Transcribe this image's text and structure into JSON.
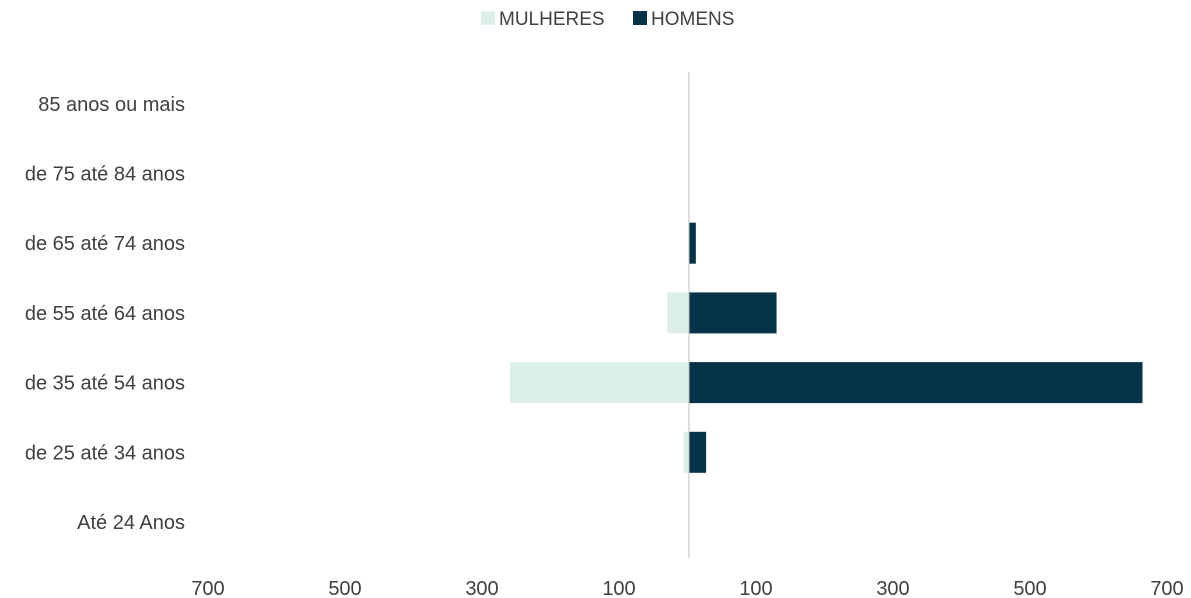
{
  "chart_data": {
    "type": "bar",
    "orientation": "horizontal",
    "subtype": "population-pyramid",
    "categories": [
      "Até 24 Anos",
      "de 25 até 34 anos",
      "de 35 até 54 anos",
      "de 55 até 64 anos",
      "de 65 até 74 anos",
      "de 75 até 84 anos",
      "85 anos ou mais"
    ],
    "series": [
      {
        "name": "MULHERES",
        "side": "left",
        "color": "#dcefea",
        "values": [
          0,
          8,
          262,
          32,
          0,
          0,
          0
        ]
      },
      {
        "name": "HOMENS",
        "side": "right",
        "color": "#063347",
        "values": [
          0,
          25,
          663,
          128,
          10,
          0,
          0
        ]
      }
    ],
    "x_ticks": [
      "700",
      "500",
      "300",
      "100",
      "100",
      "300",
      "500",
      "700"
    ],
    "x_range": [
      -800,
      700
    ],
    "legend_position": "top",
    "grid": false,
    "axis_color": "#bfbfbf"
  }
}
